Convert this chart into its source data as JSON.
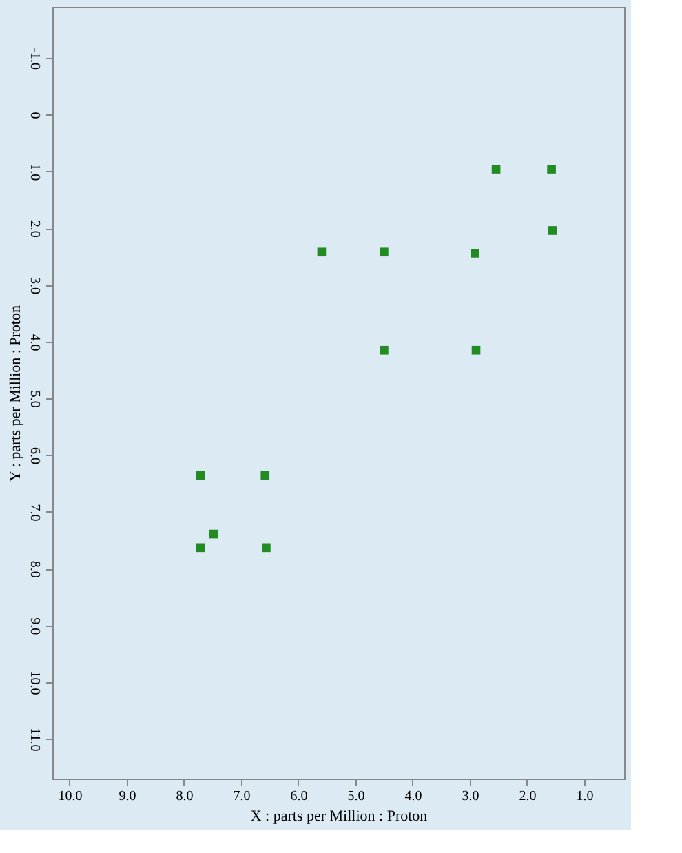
{
  "chart_data": {
    "type": "scatter",
    "xlabel": "X : parts per Million : Proton",
    "ylabel": "Y : parts per Million : Proton",
    "x": [
      1.57,
      1.55,
      2.54,
      5.59,
      4.5,
      2.91,
      4.5,
      2.89,
      7.71,
      6.58,
      7.48,
      7.71,
      6.56
    ],
    "series": [
      {
        "color": "#228b22",
        "values": [
          0.96,
          2.04,
          0.96,
          2.42,
          2.42,
          2.44,
          4.15,
          4.15,
          6.36,
          6.36,
          7.39,
          7.63,
          7.63
        ]
      }
    ],
    "marker": "square",
    "grid": false,
    "legend": false,
    "xlim": [
      10.3,
      0.3
    ],
    "ylim": [
      11.7,
      -1.9
    ],
    "xticks": [
      {
        "value": 10,
        "label": "10.0"
      },
      {
        "value": 9,
        "label": "9.0"
      },
      {
        "value": 8,
        "label": "8.0"
      },
      {
        "value": 7,
        "label": "7.0"
      },
      {
        "value": 6,
        "label": "6.0"
      },
      {
        "value": 5,
        "label": "5.0"
      },
      {
        "value": 4,
        "label": "4.0"
      },
      {
        "value": 3,
        "label": "3.0"
      },
      {
        "value": 2,
        "label": "2.0"
      },
      {
        "value": 1,
        "label": "1.0"
      }
    ],
    "yticks": [
      {
        "value": -1,
        "label": "-1.0"
      },
      0,
      {
        "value": 1,
        "label": "1.0"
      },
      {
        "value": 2,
        "label": "2.0"
      },
      {
        "value": 3,
        "label": "3.0"
      },
      {
        "value": 4,
        "label": "4.0"
      },
      {
        "value": 5,
        "label": "5.0"
      },
      {
        "value": 6,
        "label": "6.0"
      },
      {
        "value": 7,
        "label": "7.0"
      },
      {
        "value": 8,
        "label": "8.0"
      },
      {
        "value": 9,
        "label": "9.0"
      },
      {
        "value": 10,
        "label": "10.0"
      },
      {
        "value": 11,
        "label": "11.0"
      }
    ]
  }
}
